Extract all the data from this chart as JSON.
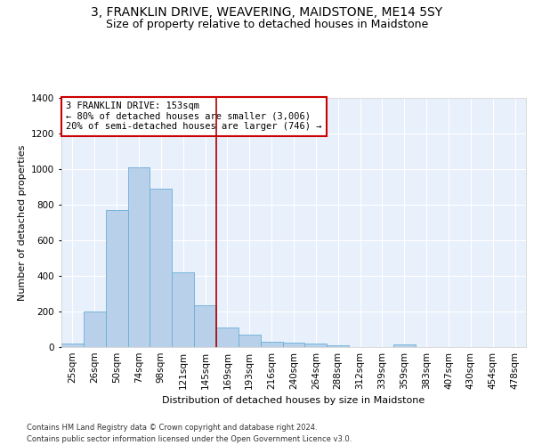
{
  "title": "3, FRANKLIN DRIVE, WEAVERING, MAIDSTONE, ME14 5SY",
  "subtitle": "Size of property relative to detached houses in Maidstone",
  "xlabel": "Distribution of detached houses by size in Maidstone",
  "ylabel": "Number of detached properties",
  "categories": [
    "25sqm",
    "26sqm",
    "50sqm",
    "74sqm",
    "98sqm",
    "121sqm",
    "145sqm",
    "169sqm",
    "193sqm",
    "216sqm",
    "240sqm",
    "264sqm",
    "288sqm",
    "312sqm",
    "339sqm",
    "359sqm",
    "383sqm",
    "407sqm",
    "430sqm",
    "454sqm",
    "478sqm"
  ],
  "values": [
    22,
    200,
    770,
    1010,
    890,
    420,
    235,
    110,
    70,
    28,
    25,
    20,
    12,
    0,
    0,
    15,
    0,
    0,
    0,
    0,
    0
  ],
  "bar_color": "#b8d0ea",
  "bar_edge_color": "#6aaed6",
  "bg_color": "#e8f0fb",
  "grid_color": "#ffffff",
  "annotation_box_text": "3 FRANKLIN DRIVE: 153sqm\n← 80% of detached houses are smaller (3,006)\n20% of semi-detached houses are larger (746) →",
  "annotation_box_color": "#ffffff",
  "annotation_box_edgecolor": "#cc0000",
  "vline_x_index": 6,
  "ylim": [
    0,
    1400
  ],
  "yticks": [
    0,
    200,
    400,
    600,
    800,
    1000,
    1200,
    1400
  ],
  "title_fontsize": 10,
  "subtitle_fontsize": 9,
  "axis_fontsize": 8,
  "tick_fontsize": 7.5,
  "footnote1": "Contains HM Land Registry data © Crown copyright and database right 2024.",
  "footnote2": "Contains public sector information licensed under the Open Government Licence v3.0."
}
